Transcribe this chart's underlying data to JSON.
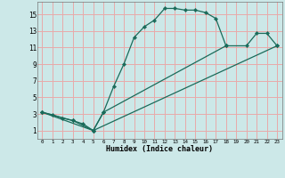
{
  "xlabel": "Humidex (Indice chaleur)",
  "bg_color": "#cce8e8",
  "grid_color": "#e8aaaa",
  "line_color": "#1a6b5a",
  "xlim": [
    -0.5,
    23.5
  ],
  "ylim": [
    0,
    16.5
  ],
  "xtick_vals": [
    0,
    1,
    2,
    3,
    4,
    5,
    6,
    7,
    8,
    9,
    10,
    11,
    12,
    13,
    14,
    15,
    16,
    17,
    18,
    19,
    20,
    21,
    22,
    23
  ],
  "ytick_vals": [
    1,
    3,
    5,
    7,
    9,
    11,
    13,
    15
  ],
  "curve1_x": [
    0,
    1,
    2,
    3,
    4,
    5,
    6,
    7,
    8,
    9,
    10,
    11,
    12,
    13,
    14,
    15,
    16,
    17,
    18
  ],
  "curve1_y": [
    3.2,
    2.9,
    2.5,
    2.2,
    1.8,
    1.0,
    3.2,
    6.3,
    9.0,
    12.2,
    13.5,
    14.3,
    15.7,
    15.7,
    15.5,
    15.5,
    15.2,
    14.5,
    11.2
  ],
  "curve2_x": [
    0,
    3,
    5,
    6,
    18,
    20,
    21,
    22,
    23
  ],
  "curve2_y": [
    3.2,
    2.2,
    1.0,
    3.2,
    11.2,
    11.2,
    12.7,
    12.7,
    11.2
  ],
  "curve3_x": [
    0,
    5,
    23
  ],
  "curve3_y": [
    3.2,
    1.0,
    11.2
  ]
}
